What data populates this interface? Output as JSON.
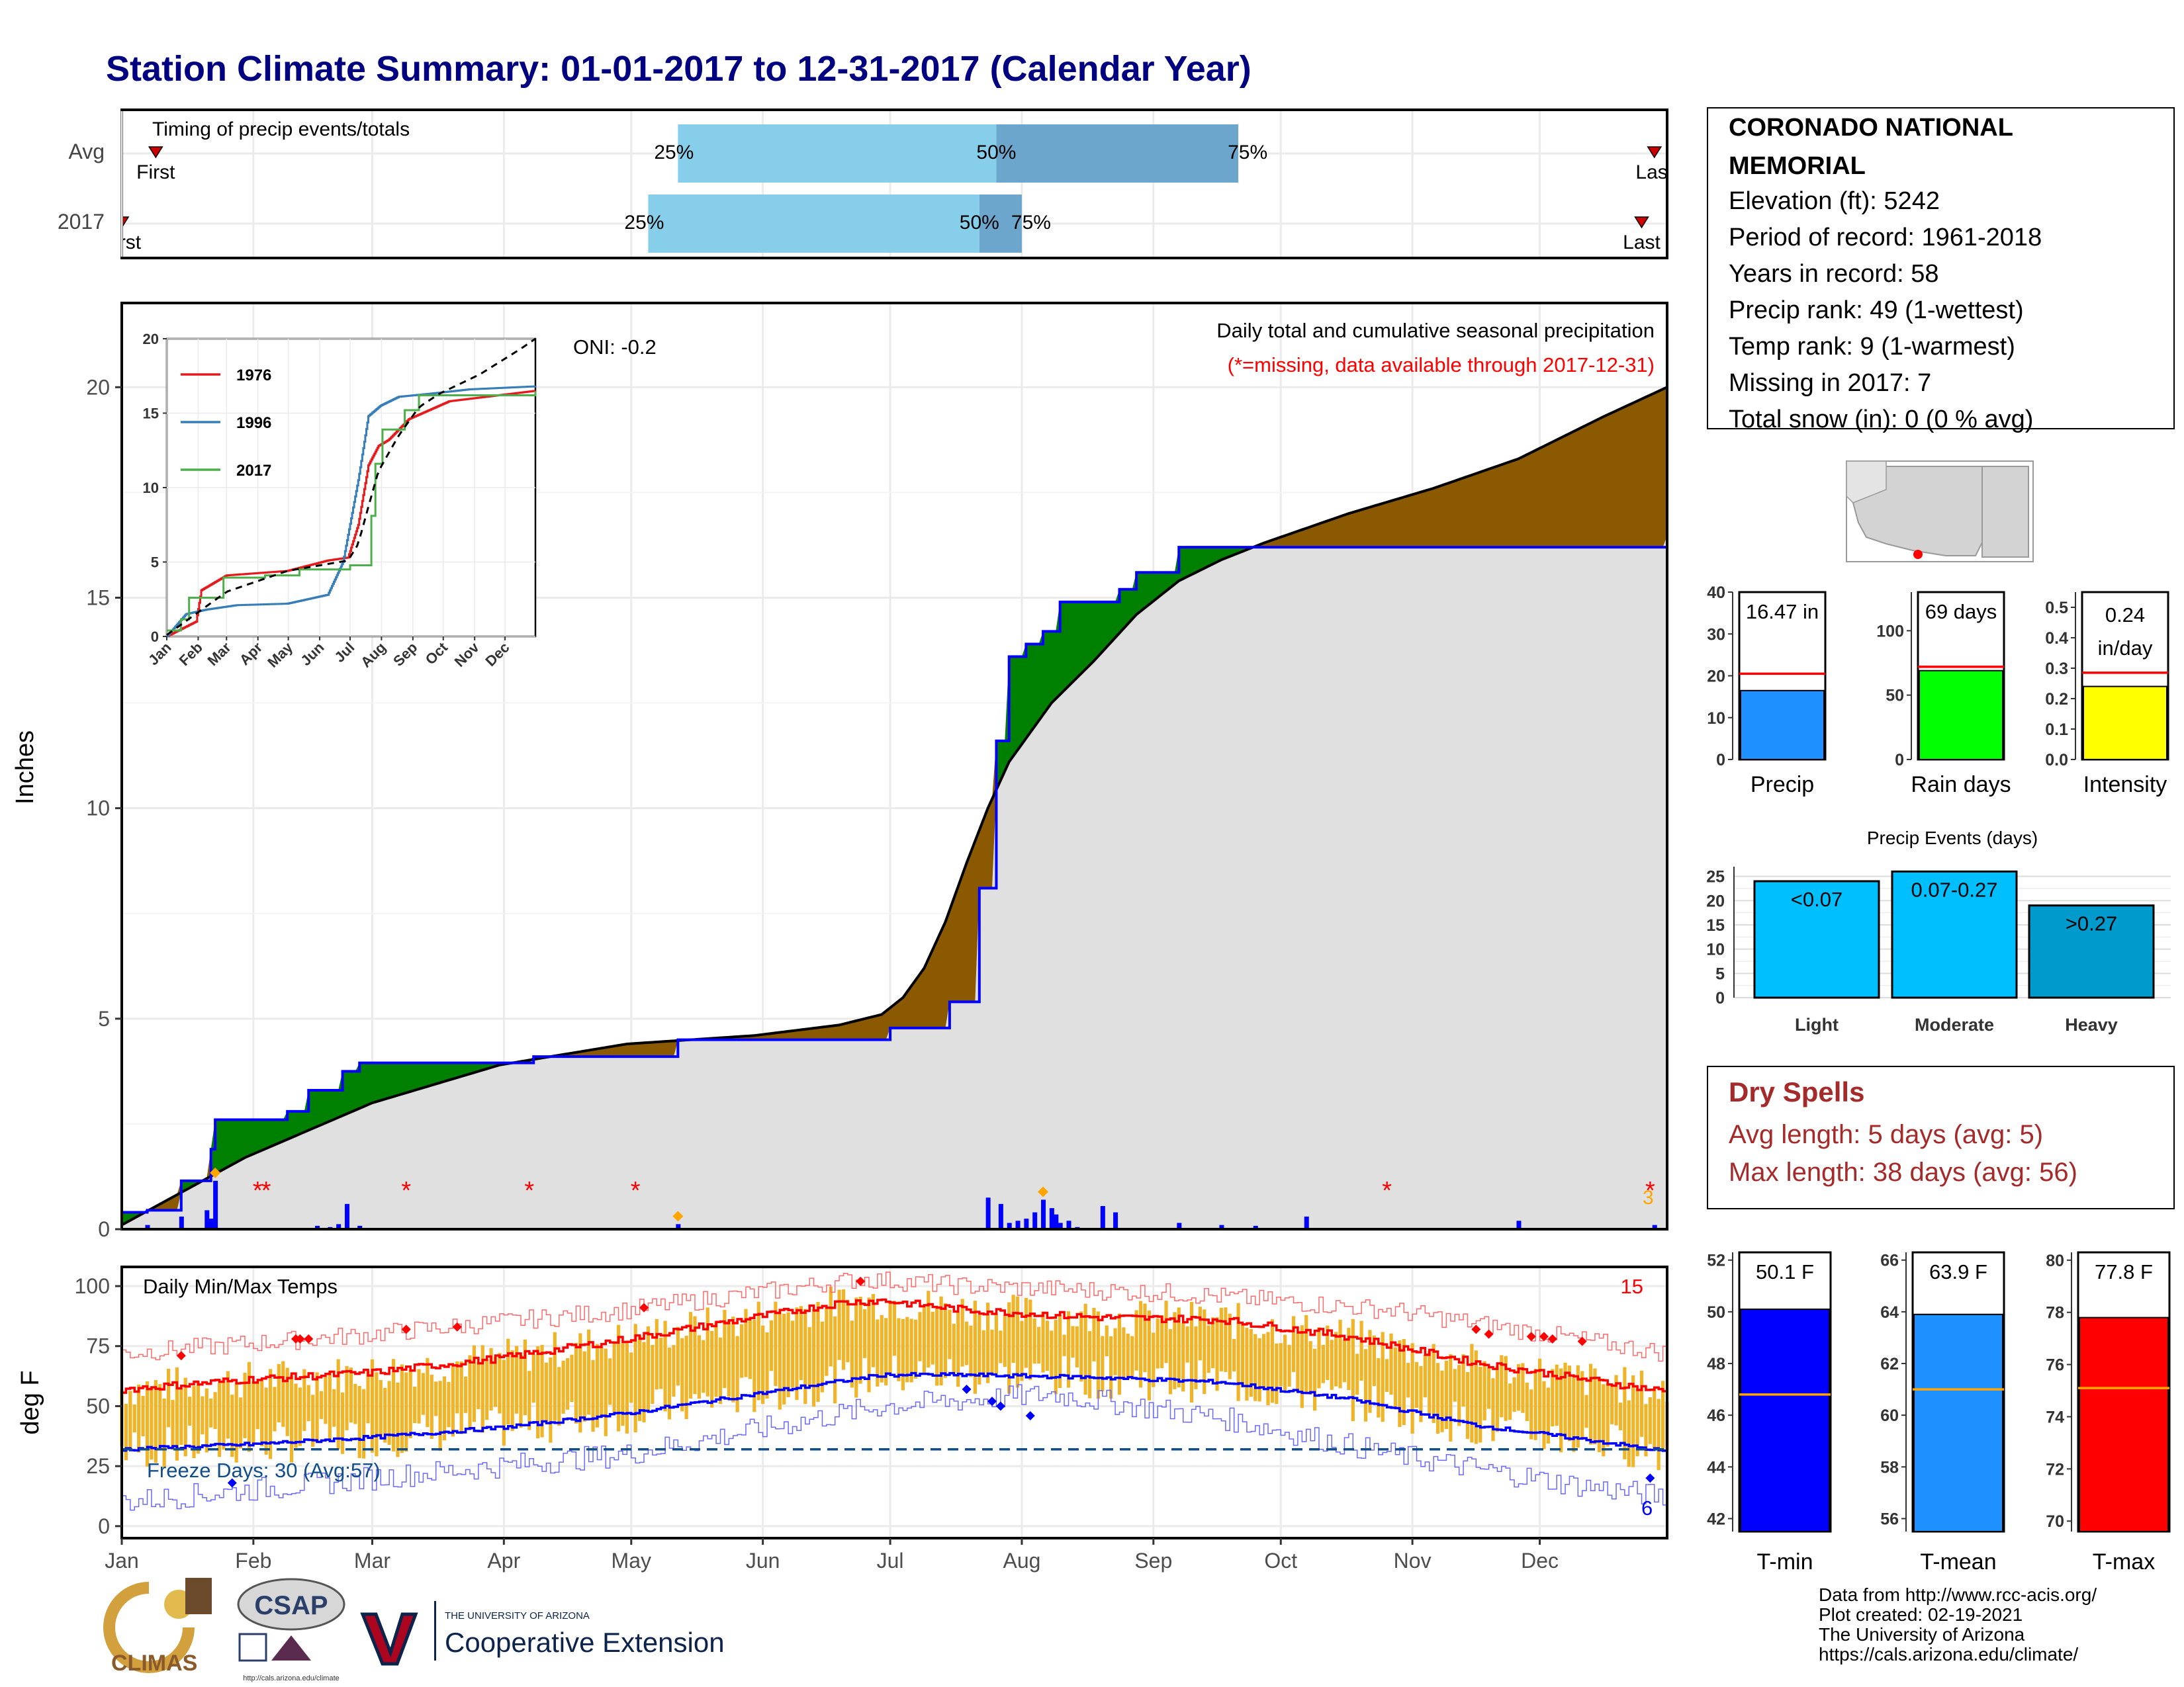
{
  "title": "Station Climate Summary: 01-01-2017 to 12-31-2017 (Calendar Year)",
  "timing": {
    "label": "Timing of precip events/totals",
    "rows": [
      {
        "name": "Avg",
        "first_label": "First",
        "last_label": "Last",
        "first_day": 9,
        "last_day": 362,
        "q25_day": 132,
        "q50_day": 207,
        "q75_day": 264,
        "labels": [
          "25%",
          "50%",
          "75%"
        ]
      },
      {
        "name": "2017",
        "first_label": "First",
        "last_label": "Last",
        "first_day": 1,
        "last_day": 359,
        "q25_day": 125,
        "q50_day": 203,
        "q75_day": 213,
        "labels": [
          "25%",
          "50%",
          "75%"
        ]
      }
    ]
  },
  "station": {
    "name": "CORONADO NATIONAL MEMORIAL",
    "lines": [
      "Elevation (ft): 5242",
      "Period of record: 1961-2018",
      "Years in record: 58",
      "Precip rank: 49 (1-wettest)",
      "Temp rank: 9 (1-warmest)",
      "Missing in 2017: 7",
      "Total snow (in): 0 (0 % avg)"
    ]
  },
  "precip_panel": {
    "ylabel": "Inches",
    "annotation_1": "Daily total and cumulative seasonal precipitation",
    "annotation_2": "(*=missing, data available through 2017-12-31)",
    "oni": "ONI: -0.2",
    "corner_count": "3",
    "ylim": [
      0,
      22
    ]
  },
  "months": [
    "Jan",
    "Feb",
    "Mar",
    "Apr",
    "May",
    "Jun",
    "Jul",
    "Aug",
    "Sep",
    "Oct",
    "Nov",
    "Dec"
  ],
  "inset": {
    "legend": [
      "1976",
      "1996",
      "2017"
    ],
    "colors": {
      "1976": "#e41a1c",
      "1996": "#377eb8",
      "2017": "#4daf4a"
    },
    "ylim": [
      0,
      20
    ],
    "yticks": [
      "0",
      "5",
      "10",
      "15",
      "20"
    ]
  },
  "stat_bars": [
    {
      "name": "Precip",
      "value_label": "16.47 in",
      "value": 16.47,
      "avg": 20.5,
      "ymax": 40,
      "ticks": [
        "0",
        "10",
        "20",
        "30",
        "40"
      ],
      "color": "#1e90ff"
    },
    {
      "name": "Rain days",
      "value_label": "69 days",
      "value": 69,
      "avg": 72,
      "ymax": 130,
      "ticks": [
        "0",
        "50",
        "100"
      ],
      "color": "#00ff00"
    },
    {
      "name": "Intensity",
      "value_label": "0.24 in/day",
      "value": 0.24,
      "avg": 0.285,
      "ymax": 0.55,
      "ticks": [
        "0.0",
        "0.1",
        "0.2",
        "0.3",
        "0.4",
        "0.5"
      ],
      "color": "#ffff00"
    }
  ],
  "events": {
    "title": "Precip Events (days)",
    "categories": [
      "Light",
      "Moderate",
      "Heavy"
    ],
    "labels": [
      "<0.07",
      "0.07-0.27",
      ">0.27"
    ],
    "values": [
      24,
      26,
      19
    ],
    "ymax": 27,
    "ticks": [
      "0",
      "5",
      "10",
      "15",
      "20",
      "25"
    ],
    "colors": [
      "#00bfff",
      "#00bfff",
      "#009acd"
    ]
  },
  "dry_spells": {
    "title": "Dry Spells",
    "line1": "Avg length: 5 days (avg: 5)",
    "line2": "Max length: 38 days (avg: 56)"
  },
  "temp_panel": {
    "ylabel": "deg F",
    "label": "Daily Min/Max Temps",
    "freeze": "Freeze Days: 30 (Avg:57)",
    "record_highs": "15",
    "record_lows": "6",
    "ylim": [
      -5,
      108
    ],
    "yticks": [
      "0",
      "25",
      "50",
      "75",
      "100"
    ]
  },
  "temp_bars": [
    {
      "name": "T-min",
      "value_label": "50.1 F",
      "value": 50.1,
      "avg": 46.8,
      "ymin": 41.5,
      "ymax": 52.3,
      "ticks": [
        "42",
        "44",
        "46",
        "48",
        "50",
        "52"
      ],
      "color": "#0000ff"
    },
    {
      "name": "T-mean",
      "value_label": "63.9 F",
      "value": 63.9,
      "avg": 61.0,
      "ymin": 55.5,
      "ymax": 66.3,
      "ticks": [
        "56",
        "58",
        "60",
        "62",
        "64",
        "66"
      ],
      "color": "#1e90ff"
    },
    {
      "name": "T-max",
      "value_label": "77.8 F",
      "value": 77.8,
      "avg": 75.1,
      "ymin": 69.6,
      "ymax": 80.3,
      "ticks": [
        "70",
        "72",
        "74",
        "76",
        "78",
        "80"
      ],
      "color": "#ff0000"
    }
  ],
  "credits": [
    "Data from http://www.rcc-acis.org/",
    "Plot created: 02-19-2021",
    "The University of Arizona",
    "https://cals.arizona.edu/climate/"
  ],
  "logos": {
    "climas": "CLIMAS",
    "csap": "CSAP",
    "csap_url": "http://cals.arizona.edu/climate",
    "ua_small": "THE UNIVERSITY OF ARIZONA",
    "ua_big": "Cooperative Extension"
  },
  "chart_data": [
    {
      "type": "area",
      "title": "Daily total and cumulative seasonal precipitation",
      "ylabel": "Inches",
      "ylim": [
        0,
        22
      ],
      "series": [
        {
          "name": "2017 cumulative",
          "x": [
            1,
            7,
            15,
            22,
            23,
            40,
            45,
            53,
            57,
            98,
            132,
            182,
            196,
            203,
            207,
            210,
            214,
            218,
            222,
            236,
            240,
            250,
            365
          ],
          "values": [
            0.4,
            0.45,
            1.15,
            1.9,
            2.6,
            2.8,
            3.3,
            3.75,
            3.95,
            4.1,
            4.5,
            4.78,
            5.4,
            8.1,
            11.6,
            13.6,
            13.9,
            14.2,
            14.9,
            15.2,
            15.6,
            16.2,
            16.47
          ]
        },
        {
          "name": "Average cumulative",
          "x": [
            1,
            30,
            60,
            90,
            120,
            150,
            170,
            180,
            185,
            190,
            195,
            200,
            205,
            210,
            220,
            230,
            240,
            250,
            260,
            270,
            290,
            310,
            330,
            350,
            365
          ],
          "values": [
            0.1,
            1.7,
            3.0,
            3.9,
            4.4,
            4.6,
            4.85,
            5.1,
            5.5,
            6.2,
            7.3,
            8.7,
            10.0,
            11.1,
            12.5,
            13.5,
            14.6,
            15.4,
            15.9,
            16.3,
            17.0,
            17.6,
            18.3,
            19.3,
            20.0
          ]
        },
        {
          "name": "Daily precip",
          "x": [
            7,
            15,
            21,
            22,
            23,
            47,
            50,
            52,
            54,
            57,
            132,
            205,
            208,
            210,
            212,
            214,
            216,
            218,
            220,
            221,
            222,
            224,
            226,
            232,
            235,
            250,
            260,
            268,
            280,
            330,
            362
          ],
          "values": [
            0.1,
            0.3,
            0.45,
            0.25,
            1.15,
            0.08,
            0.05,
            0.12,
            0.6,
            0.08,
            0.12,
            0.75,
            0.6,
            0.15,
            0.2,
            0.25,
            0.4,
            0.7,
            0.5,
            0.35,
            0.15,
            0.2,
            0.05,
            0.55,
            0.4,
            0.15,
            0.1,
            0.08,
            0.3,
            0.2,
            0.1
          ]
        }
      ]
    },
    {
      "type": "line",
      "title": "",
      "series": [
        {
          "name": "1976",
          "x": [
            1,
            30,
            35,
            60,
            120,
            160,
            180,
            190,
            200,
            210,
            220,
            240,
            280,
            365
          ],
          "values": [
            0,
            1.0,
            3.1,
            4.1,
            4.4,
            5.1,
            5.3,
            7.5,
            11.5,
            12.8,
            13.2,
            14.6,
            15.8,
            16.5
          ]
        },
        {
          "name": "1996",
          "x": [
            1,
            20,
            40,
            70,
            120,
            160,
            175,
            190,
            200,
            212,
            230,
            260,
            300,
            365
          ],
          "values": [
            0,
            1.5,
            1.8,
            2.1,
            2.2,
            2.8,
            5.0,
            10.5,
            14.8,
            15.5,
            16.1,
            16.3,
            16.6,
            16.8
          ]
        },
        {
          "name": "2017",
          "x": [
            1,
            15,
            23,
            57,
            98,
            132,
            182,
            203,
            207,
            214,
            236,
            250,
            365
          ],
          "values": [
            0.4,
            1.15,
            2.6,
            3.95,
            4.1,
            4.5,
            4.78,
            8.1,
            11.6,
            13.9,
            15.2,
            16.2,
            16.47
          ]
        },
        {
          "name": "Average",
          "x": [
            1,
            60,
            120,
            180,
            190,
            200,
            210,
            230,
            250,
            270,
            310,
            350,
            365
          ],
          "values": [
            0.1,
            3.0,
            4.4,
            5.1,
            6.2,
            8.7,
            11.1,
            13.5,
            15.4,
            16.3,
            17.6,
            19.3,
            20.0
          ]
        }
      ]
    },
    {
      "type": "line",
      "title": "Daily Min/Max Temps",
      "ylabel": "deg F",
      "ylim": [
        -5,
        108
      ],
      "series": [
        {
          "name": "Avg max",
          "x": [
            1,
            30,
            60,
            90,
            120,
            150,
            170,
            180,
            200,
            230,
            260,
            290,
            320,
            350,
            365
          ],
          "values": [
            57,
            61,
            64,
            70,
            78,
            87,
            93,
            94,
            90,
            87,
            86,
            79,
            68,
            60,
            56
          ]
        },
        {
          "name": "Avg min",
          "x": [
            1,
            30,
            60,
            90,
            120,
            150,
            180,
            200,
            230,
            260,
            290,
            320,
            350,
            365
          ],
          "values": [
            32,
            34,
            37,
            41,
            47,
            55,
            63,
            63,
            62,
            60,
            53,
            42,
            35,
            31
          ]
        },
        {
          "name": "Record max",
          "x": [
            1,
            60,
            120,
            175,
            200,
            250,
            300,
            365
          ],
          "values": [
            72,
            80,
            90,
            103,
            100,
            97,
            90,
            72
          ]
        },
        {
          "name": "Record min",
          "x": [
            1,
            60,
            120,
            180,
            220,
            260,
            300,
            340,
            365
          ],
          "values": [
            10,
            20,
            30,
            50,
            55,
            45,
            30,
            18,
            12
          ]
        }
      ]
    },
    {
      "type": "bar",
      "title": "Precip Events (days)",
      "categories": [
        "Light",
        "Moderate",
        "Heavy"
      ],
      "values": [
        24,
        26,
        19
      ]
    }
  ]
}
